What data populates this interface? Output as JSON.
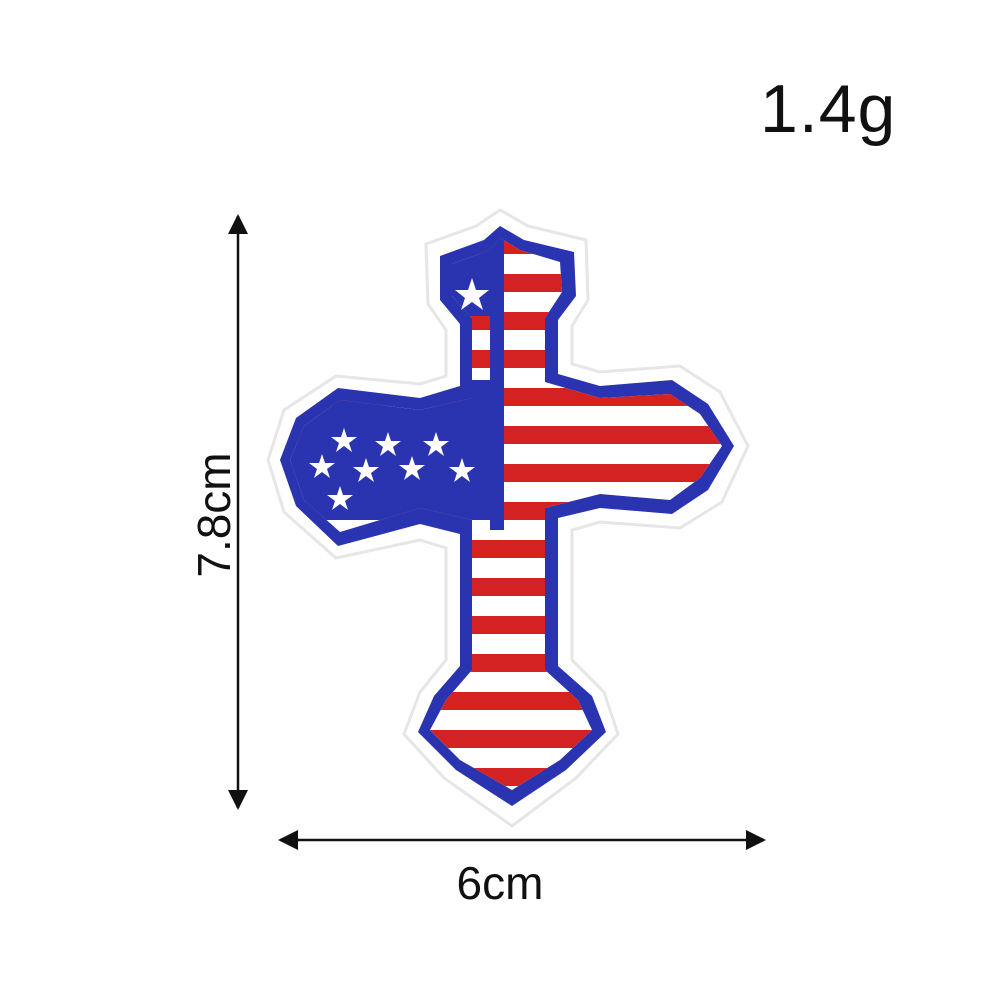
{
  "weight": "1.4g",
  "dimensions": {
    "height": "7.8cm",
    "width": "6cm"
  },
  "patch": {
    "subject": "cross-patch",
    "colors": {
      "blue": "#2a34b0",
      "red": "#d42222",
      "white": "#ffffff",
      "border": "#e9e9e9"
    }
  }
}
